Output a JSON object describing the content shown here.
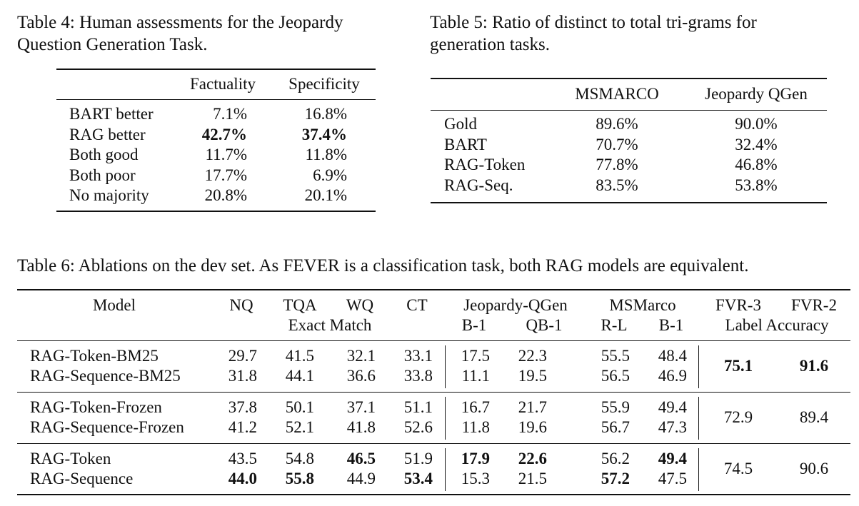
{
  "table4": {
    "caption_line1": "Table 4:  Human assessments for the Jeopardy",
    "caption_line2": "Question Generation Task.",
    "headers": [
      "Factuality",
      "Specificity"
    ],
    "rows": [
      {
        "label": "BART better",
        "factuality": "7.1%",
        "specificity": "16.8%"
      },
      {
        "label": "RAG better",
        "factuality": "42.7%",
        "specificity": "37.4%"
      },
      {
        "label": "Both good",
        "factuality": "11.7%",
        "specificity": "11.8%"
      },
      {
        "label": "Both poor",
        "factuality": "17.7%",
        "specificity": "6.9%"
      },
      {
        "label": "No majority",
        "factuality": "20.8%",
        "specificity": "20.1%"
      }
    ]
  },
  "table5": {
    "caption_line1": "Table 5:  Ratio of distinct to total tri-grams for",
    "caption_line2": "generation tasks.",
    "headers": [
      "MSMARCO",
      "Jeopardy QGen"
    ],
    "rows": [
      {
        "label": "Gold",
        "msmarco": "89.6%",
        "jeopardy": "90.0%"
      },
      {
        "label": "BART",
        "msmarco": "70.7%",
        "jeopardy": "32.4%"
      },
      {
        "label": "RAG-Token",
        "msmarco": "77.8%",
        "jeopardy": "46.8%"
      },
      {
        "label": "RAG-Seq.",
        "msmarco": "83.5%",
        "jeopardy": "53.8%"
      }
    ]
  },
  "table6": {
    "caption": "Table 6:  Ablations on the dev set.  As FEVER is a classification task, both RAG models are equivalent.",
    "headers": {
      "model": "Model",
      "nq": "NQ",
      "tqa": "TQA",
      "wq": "WQ",
      "ct": "CT",
      "exact_match": "Exact Match",
      "jeopardy": "Jeopardy-QGen",
      "b1": "B-1",
      "qb1": "QB-1",
      "msmarco": "MSMarco",
      "rl": "R-L",
      "b1b": "B-1",
      "fvr3": "FVR-3",
      "fvr2": "FVR-2",
      "label_accuracy": "Label Accuracy"
    },
    "groups": [
      {
        "rows": [
          {
            "model": "RAG-Token-BM25",
            "nq": "29.7",
            "tqa": "41.5",
            "wq": "32.1",
            "ct": "33.1",
            "jb1": "17.5",
            "jqb1": "22.3",
            "mrl": "55.5",
            "mb1": "48.4"
          },
          {
            "model": "RAG-Sequence-BM25",
            "nq": "31.8",
            "tqa": "44.1",
            "wq": "36.6",
            "ct": "33.8",
            "jb1": "11.1",
            "jqb1": "19.5",
            "mrl": "56.5",
            "mb1": "46.9"
          }
        ],
        "fvr3": "75.1",
        "fvr2": "91.6"
      },
      {
        "rows": [
          {
            "model": "RAG-Token-Frozen",
            "nq": "37.8",
            "tqa": "50.1",
            "wq": "37.1",
            "ct": "51.1",
            "jb1": "16.7",
            "jqb1": "21.7",
            "mrl": "55.9",
            "mb1": "49.4"
          },
          {
            "model": "RAG-Sequence-Frozen",
            "nq": "41.2",
            "tqa": "52.1",
            "wq": "41.8",
            "ct": "52.6",
            "jb1": "11.8",
            "jqb1": "19.6",
            "mrl": "56.7",
            "mb1": "47.3"
          }
        ],
        "fvr3": "72.9",
        "fvr2": "89.4"
      },
      {
        "rows": [
          {
            "model": "RAG-Token",
            "nq": "43.5",
            "tqa": "54.8",
            "wq": "46.5",
            "ct": "51.9",
            "jb1": "17.9",
            "jqb1": "22.6",
            "mrl": "56.2",
            "mb1": "49.4"
          },
          {
            "model": "RAG-Sequence",
            "nq": "44.0",
            "tqa": "55.8",
            "wq": "44.9",
            "ct": "53.4",
            "jb1": "15.3",
            "jqb1": "21.5",
            "mrl": "57.2",
            "mb1": "47.5"
          }
        ],
        "fvr3": "74.5",
        "fvr2": "90.6"
      }
    ]
  }
}
